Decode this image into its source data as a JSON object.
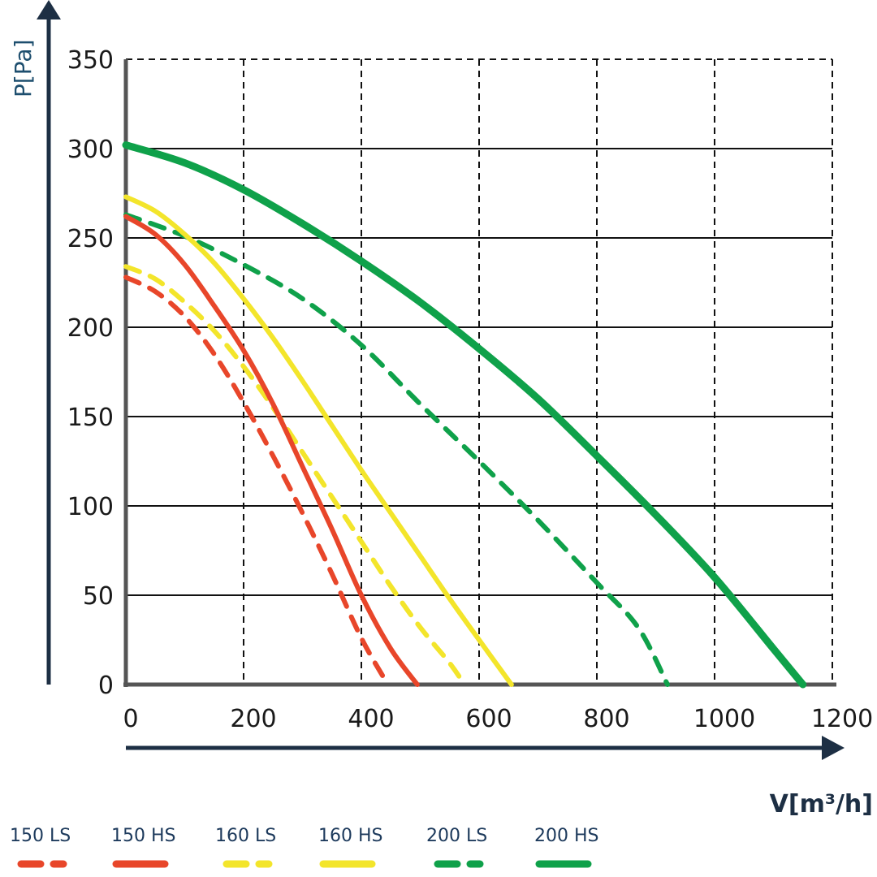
{
  "chart_data": {
    "type": "line",
    "title": "",
    "xlabel": "V[m³/h]",
    "ylabel": "P[Pa]",
    "xlim": [
      0,
      1200
    ],
    "ylim": [
      0,
      350
    ],
    "xticks": [
      0,
      200,
      400,
      600,
      800,
      1000,
      1200
    ],
    "yticks": [
      0,
      50,
      100,
      150,
      200,
      250,
      300,
      350
    ],
    "xtick_labels": [
      "0",
      "200",
      "400",
      "600",
      "800",
      "1000",
      "1200"
    ],
    "ytick_labels": [
      "0",
      "50",
      "100",
      "150",
      "200",
      "250",
      "300",
      "350"
    ],
    "grid": true,
    "legend_position": "bottom",
    "series": [
      {
        "name": "150 LS",
        "color": "#e8462a",
        "style": "dashed",
        "points": [
          [
            0,
            228
          ],
          [
            50,
            220
          ],
          [
            100,
            206
          ],
          [
            150,
            185
          ],
          [
            200,
            158
          ],
          [
            250,
            128
          ],
          [
            300,
            96
          ],
          [
            350,
            62
          ],
          [
            400,
            26
          ],
          [
            445,
            0
          ]
        ]
      },
      {
        "name": "150 HS",
        "color": "#e8462a",
        "style": "solid",
        "points": [
          [
            0,
            262
          ],
          [
            50,
            252
          ],
          [
            100,
            235
          ],
          [
            150,
            212
          ],
          [
            200,
            187
          ],
          [
            250,
            157
          ],
          [
            300,
            122
          ],
          [
            350,
            87
          ],
          [
            400,
            50
          ],
          [
            450,
            20
          ],
          [
            495,
            0
          ]
        ]
      },
      {
        "name": "160 LS",
        "color": "#f3e52b",
        "style": "dashed",
        "points": [
          [
            0,
            234
          ],
          [
            50,
            227
          ],
          [
            100,
            214
          ],
          [
            150,
            198
          ],
          [
            200,
            178
          ],
          [
            250,
            155
          ],
          [
            300,
            130
          ],
          [
            350,
            105
          ],
          [
            400,
            80
          ],
          [
            450,
            55
          ],
          [
            500,
            32
          ],
          [
            550,
            12
          ],
          [
            575,
            0
          ]
        ]
      },
      {
        "name": "160 HS",
        "color": "#f3e52b",
        "style": "solid",
        "points": [
          [
            0,
            273
          ],
          [
            50,
            265
          ],
          [
            100,
            252
          ],
          [
            150,
            236
          ],
          [
            200,
            216
          ],
          [
            250,
            194
          ],
          [
            300,
            170
          ],
          [
            350,
            145
          ],
          [
            400,
            120
          ],
          [
            450,
            96
          ],
          [
            500,
            72
          ],
          [
            550,
            48
          ],
          [
            600,
            25
          ],
          [
            655,
            0
          ]
        ]
      },
      {
        "name": "200 LS",
        "color": "#0fa14a",
        "style": "dashed",
        "points": [
          [
            0,
            263
          ],
          [
            100,
            251
          ],
          [
            200,
            235
          ],
          [
            300,
            216
          ],
          [
            400,
            190
          ],
          [
            500,
            157
          ],
          [
            600,
            125
          ],
          [
            700,
            92
          ],
          [
            800,
            57
          ],
          [
            870,
            32
          ],
          [
            920,
            0
          ]
        ]
      },
      {
        "name": "200 HS",
        "color": "#0fa14a",
        "style": "solid",
        "points": [
          [
            0,
            302
          ],
          [
            100,
            292
          ],
          [
            200,
            277
          ],
          [
            300,
            258
          ],
          [
            400,
            237
          ],
          [
            500,
            214
          ],
          [
            600,
            188
          ],
          [
            700,
            160
          ],
          [
            800,
            128
          ],
          [
            900,
            95
          ],
          [
            1000,
            60
          ],
          [
            1100,
            20
          ],
          [
            1150,
            0
          ]
        ]
      }
    ]
  }
}
